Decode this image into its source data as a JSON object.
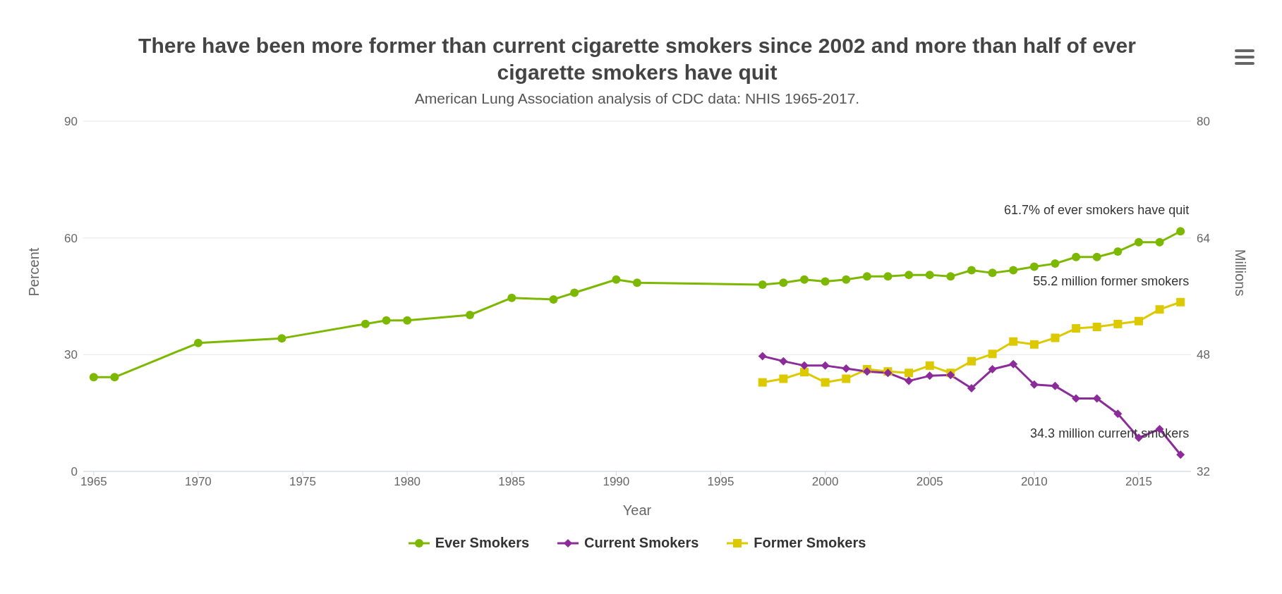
{
  "chart_data": {
    "type": "line",
    "title": "There have been more former than current cigarette smokers since 2002 and more than half of ever cigarette smokers have quit",
    "subtitle": "American Lung Association analysis of CDC data: NHIS 1965-2017.",
    "xlabel": "Year",
    "ylabel": "Percent",
    "y2label": "Millions",
    "xlim": [
      1964.5,
      2017.5
    ],
    "xticks": [
      1965,
      1970,
      1975,
      1980,
      1985,
      1990,
      1995,
      2000,
      2005,
      2010,
      2015
    ],
    "ylim": [
      0,
      90
    ],
    "yticks": [
      0,
      30,
      60,
      90
    ],
    "y2lim": [
      32,
      80
    ],
    "y2ticks": [
      32,
      48,
      64,
      80
    ],
    "grid": "y",
    "legend": "bottom",
    "series": [
      {
        "name": "Ever Smokers",
        "color": "#7cb800",
        "marker": "circle",
        "x": [
          1965,
          1966,
          1970,
          1974,
          1978,
          1979,
          1980,
          1983,
          1985,
          1987,
          1988,
          1990,
          1991,
          1997,
          1998,
          1999,
          2000,
          2001,
          2002,
          2003,
          2004,
          2005,
          2006,
          2007,
          2008,
          2009,
          2010,
          2011,
          2012,
          2013,
          2014,
          2015,
          2016,
          2017
        ],
        "values": [
          24.2,
          24.2,
          33.0,
          34.2,
          37.9,
          38.8,
          38.8,
          40.2,
          44.6,
          44.2,
          45.9,
          49.3,
          48.5,
          48.0,
          48.5,
          49.3,
          48.8,
          49.3,
          50.1,
          50.1,
          50.5,
          50.5,
          50.1,
          51.7,
          51.0,
          51.7,
          52.6,
          53.4,
          55.1,
          55.1,
          56.5,
          58.9,
          58.9,
          61.7
        ]
      },
      {
        "name": "Current Smokers",
        "color": "#8b2c9a",
        "marker": "diamond",
        "axis": "y2",
        "x": [
          1997,
          1998,
          1999,
          2000,
          2001,
          2002,
          2003,
          2004,
          2005,
          2006,
          2007,
          2008,
          2009,
          2010,
          2011,
          2012,
          2013,
          2014,
          2015,
          2016,
          2017
        ],
        "values": [
          47.8,
          47.1,
          46.5,
          46.5,
          46.1,
          45.7,
          45.5,
          44.4,
          45.1,
          45.2,
          43.4,
          46.0,
          46.7,
          43.9,
          43.7,
          42.0,
          42.0,
          39.9,
          36.6,
          37.8,
          34.3
        ]
      },
      {
        "name": "Former Smokers",
        "color": "#ddc900",
        "marker": "square",
        "axis": "y2",
        "x": [
          1997,
          1998,
          1999,
          2000,
          2001,
          2002,
          2003,
          2004,
          2005,
          2006,
          2007,
          2008,
          2009,
          2010,
          2011,
          2012,
          2013,
          2014,
          2015,
          2016,
          2017
        ],
        "values": [
          44.2,
          44.7,
          45.6,
          44.2,
          44.7,
          46.0,
          45.7,
          45.5,
          46.5,
          45.5,
          47.1,
          48.1,
          49.8,
          49.4,
          50.3,
          51.6,
          51.8,
          52.2,
          52.6,
          54.2,
          55.2
        ]
      }
    ],
    "annotations": [
      {
        "text": "61.7% of ever smokers have quit",
        "x": 2017,
        "y": 61.7
      },
      "34.3 million current smokers",
      "55.2 million former smokers"
    ]
  }
}
